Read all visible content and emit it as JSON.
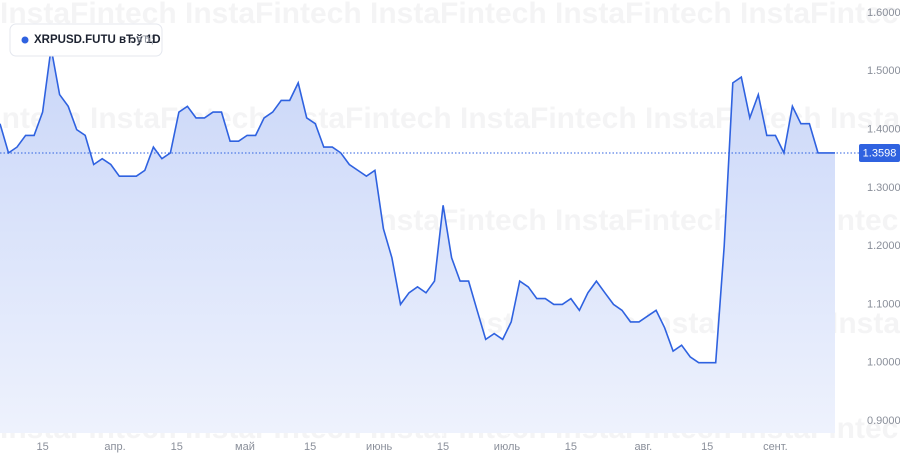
{
  "chart_data": {
    "type": "line",
    "watermark": "InstaFintech",
    "series": [
      {
        "name": "XRPUSD.FUTU вЂў 1D",
        "suffix": "вЂ¦",
        "color": "#2f62e0",
        "x": [
          0,
          2,
          4,
          6,
          8,
          10,
          12,
          14,
          16,
          18,
          20,
          22,
          24,
          26,
          28,
          30,
          32,
          34,
          36,
          38,
          40,
          42,
          44,
          46,
          48,
          50,
          52,
          54,
          56,
          58,
          60,
          62,
          64,
          66,
          68,
          70,
          72,
          74,
          76,
          78,
          80,
          82,
          84,
          86,
          88,
          90,
          92,
          94,
          96,
          98,
          100,
          102,
          104,
          106,
          108,
          110,
          112,
          114,
          116,
          118,
          120,
          122,
          124,
          126,
          128,
          130,
          132,
          134,
          136,
          138,
          140,
          142,
          144,
          146,
          148,
          150,
          152,
          154,
          156,
          158,
          160,
          162,
          164,
          166,
          168,
          170,
          172,
          174,
          176,
          178,
          180,
          182,
          184,
          186,
          188,
          190,
          192,
          194,
          196
        ],
        "values": [
          1.41,
          1.36,
          1.37,
          1.39,
          1.39,
          1.43,
          1.54,
          1.46,
          1.44,
          1.4,
          1.39,
          1.34,
          1.35,
          1.34,
          1.32,
          1.32,
          1.32,
          1.33,
          1.37,
          1.35,
          1.36,
          1.43,
          1.44,
          1.42,
          1.42,
          1.43,
          1.43,
          1.38,
          1.38,
          1.39,
          1.39,
          1.42,
          1.43,
          1.45,
          1.45,
          1.48,
          1.42,
          1.41,
          1.37,
          1.37,
          1.36,
          1.34,
          1.33,
          1.32,
          1.33,
          1.23,
          1.18,
          1.1,
          1.12,
          1.13,
          1.12,
          1.14,
          1.27,
          1.18,
          1.14,
          1.14,
          1.09,
          1.04,
          1.05,
          1.04,
          1.07,
          1.14,
          1.13,
          1.11,
          1.11,
          1.1,
          1.1,
          1.11,
          1.09,
          1.12,
          1.14,
          1.12,
          1.1,
          1.09,
          1.07,
          1.07,
          1.08,
          1.09,
          1.06,
          1.02,
          1.03,
          1.01,
          1.0,
          1.0,
          1.0,
          1.2,
          1.48,
          1.49,
          1.42,
          1.46,
          1.39,
          1.39,
          1.36,
          1.44,
          1.41,
          1.41,
          1.36,
          1.36,
          1.36
        ]
      }
    ],
    "last_price": 1.3598,
    "xlim": [
      0,
      196
    ],
    "xticks": [
      {
        "value": 10,
        "label": "15"
      },
      {
        "value": 27,
        "label": "апр."
      },
      {
        "value": 41.5,
        "label": "15"
      },
      {
        "value": 57.5,
        "label": "май"
      },
      {
        "value": 72.8,
        "label": "15"
      },
      {
        "value": 89,
        "label": "июнь"
      },
      {
        "value": 104,
        "label": "15"
      },
      {
        "value": 119,
        "label": "июль"
      },
      {
        "value": 134,
        "label": "15"
      },
      {
        "value": 151,
        "label": "авг."
      },
      {
        "value": 166,
        "label": "15"
      },
      {
        "value": 182,
        "label": "сент."
      }
    ],
    "ylim": [
      0.9,
      1.6
    ],
    "yticks": [
      {
        "value": 0.9,
        "label": "0.9000"
      },
      {
        "value": 1.0,
        "label": "1.0000"
      },
      {
        "value": 1.1,
        "label": "1.1000"
      },
      {
        "value": 1.2,
        "label": "1.2000"
      },
      {
        "value": 1.3,
        "label": "1.3000"
      },
      {
        "value": 1.4,
        "label": "1.4000"
      },
      {
        "value": 1.5,
        "label": "1.5000"
      },
      {
        "value": 1.6,
        "label": "1.6000"
      }
    ]
  }
}
